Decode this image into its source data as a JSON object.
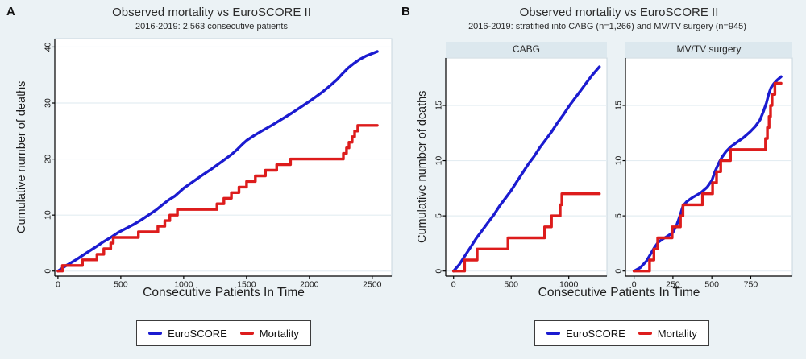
{
  "colors": {
    "euroscore": "#1b1bd0",
    "mortality": "#dd1c1c",
    "canvas_bg": "#ebf2f5",
    "plot_bg": "#ffffff",
    "plot_border": "#c9d7de",
    "header_bg": "#dce8ee",
    "grid": "#e4edf2",
    "axis": "#000000",
    "text": "#1a1a1a"
  },
  "legend": {
    "euroscore": "EuroSCORE",
    "mortality": "Mortality"
  },
  "panelA": {
    "label": "A",
    "title": "Observed mortality vs EuroSCORE II",
    "subtitle": "2016-2019: 2,563 consecutive patients",
    "ylabel": "Cumulative number of deaths",
    "xlabel": "Consecutive Patients In Time"
  },
  "panelB": {
    "label": "B",
    "title": "Observed mortality vs EuroSCORE II",
    "subtitle": "2016-2019: stratified into CABG (n=1,266) and MV/TV surgery (n=945)",
    "ylabel": "Cumulative number of deaths",
    "xlabel": "Consecutive Patients In Time"
  },
  "chart_data": [
    {
      "id": "chartA",
      "type": "line",
      "title": "Observed mortality vs EuroSCORE II",
      "subtitle": "2016-2019: 2,563 consecutive patients",
      "xlabel": "Consecutive Patients In Time",
      "ylabel": "Cumulative number of deaths",
      "grid": "horizontal",
      "legend_position": "bottom",
      "xticks": [
        0,
        500,
        1000,
        1500,
        2000,
        2500
      ],
      "yticks": [
        0,
        10,
        20,
        30,
        40
      ],
      "xlim": [
        -25,
        2655
      ],
      "ylim": [
        -0.9,
        41.5
      ],
      "series": [
        {
          "name": "EuroSCORE",
          "style": "line",
          "color": "euroscore",
          "points": [
            [
              0,
              0
            ],
            [
              60,
              0.9
            ],
            [
              150,
              2.1
            ],
            [
              230,
              3.3
            ],
            [
              300,
              4.3
            ],
            [
              360,
              5.2
            ],
            [
              420,
              6.0
            ],
            [
              480,
              6.9
            ],
            [
              540,
              7.6
            ],
            [
              600,
              8.3
            ],
            [
              660,
              9.1
            ],
            [
              720,
              10.0
            ],
            [
              780,
              10.9
            ],
            [
              830,
              11.8
            ],
            [
              880,
              12.7
            ],
            [
              930,
              13.4
            ],
            [
              1000,
              14.8
            ],
            [
              1070,
              15.9
            ],
            [
              1140,
              17.0
            ],
            [
              1220,
              18.2
            ],
            [
              1300,
              19.5
            ],
            [
              1380,
              20.8
            ],
            [
              1430,
              21.8
            ],
            [
              1470,
              22.7
            ],
            [
              1500,
              23.3
            ],
            [
              1560,
              24.2
            ],
            [
              1620,
              25.0
            ],
            [
              1700,
              26.0
            ],
            [
              1780,
              27.1
            ],
            [
              1860,
              28.2
            ],
            [
              1940,
              29.4
            ],
            [
              2020,
              30.6
            ],
            [
              2100,
              31.9
            ],
            [
              2160,
              33.0
            ],
            [
              2220,
              34.2
            ],
            [
              2270,
              35.4
            ],
            [
              2310,
              36.3
            ],
            [
              2350,
              37.0
            ],
            [
              2400,
              37.8
            ],
            [
              2450,
              38.4
            ],
            [
              2540,
              39.2
            ]
          ]
        },
        {
          "name": "Mortality",
          "style": "step",
          "color": "mortality",
          "points": [
            [
              0,
              0
            ],
            [
              35,
              1
            ],
            [
              195,
              2
            ],
            [
              310,
              3
            ],
            [
              365,
              4
            ],
            [
              420,
              5
            ],
            [
              440,
              6
            ],
            [
              640,
              7
            ],
            [
              795,
              8
            ],
            [
              850,
              9
            ],
            [
              890,
              10
            ],
            [
              950,
              11
            ],
            [
              1265,
              12
            ],
            [
              1320,
              13
            ],
            [
              1380,
              14
            ],
            [
              1440,
              15
            ],
            [
              1500,
              16
            ],
            [
              1570,
              17
            ],
            [
              1650,
              18
            ],
            [
              1740,
              19
            ],
            [
              1850,
              20
            ],
            [
              2270,
              21
            ],
            [
              2295,
              22
            ],
            [
              2315,
              23
            ],
            [
              2340,
              24
            ],
            [
              2360,
              25
            ],
            [
              2385,
              26
            ],
            [
              2540,
              26
            ]
          ]
        }
      ]
    },
    {
      "id": "chartB1",
      "type": "line",
      "panel": "CABG",
      "xlabel": "Consecutive Patients In Time",
      "ylabel": "Cumulative number of deaths",
      "grid": "horizontal",
      "xticks": [
        0,
        500,
        1000
      ],
      "yticks": [
        0,
        5,
        10,
        15
      ],
      "xlim": [
        -68,
        1331
      ],
      "ylim": [
        -0.46,
        19.3
      ],
      "series": [
        {
          "name": "EuroSCORE",
          "style": "line",
          "color": "euroscore",
          "points": [
            [
              0,
              0
            ],
            [
              50,
              0.6
            ],
            [
              100,
              1.4
            ],
            [
              150,
              2.2
            ],
            [
              200,
              3.0
            ],
            [
              250,
              3.7
            ],
            [
              300,
              4.4
            ],
            [
              350,
              5.1
            ],
            [
              400,
              5.9
            ],
            [
              450,
              6.6
            ],
            [
              500,
              7.3
            ],
            [
              550,
              8.1
            ],
            [
              600,
              8.9
            ],
            [
              650,
              9.7
            ],
            [
              700,
              10.4
            ],
            [
              750,
              11.2
            ],
            [
              800,
              11.9
            ],
            [
              850,
              12.6
            ],
            [
              900,
              13.4
            ],
            [
              950,
              14.1
            ],
            [
              1000,
              14.9
            ],
            [
              1050,
              15.6
            ],
            [
              1100,
              16.3
            ],
            [
              1150,
              17.0
            ],
            [
              1200,
              17.7
            ],
            [
              1266,
              18.5
            ]
          ]
        },
        {
          "name": "Mortality",
          "style": "step",
          "color": "mortality",
          "points": [
            [
              0,
              0
            ],
            [
              96,
              1
            ],
            [
              205,
              2
            ],
            [
              472,
              3
            ],
            [
              790,
              4
            ],
            [
              850,
              5
            ],
            [
              925,
              6
            ],
            [
              940,
              7
            ],
            [
              1266,
              7
            ]
          ]
        }
      ]
    },
    {
      "id": "chartB2",
      "type": "line",
      "panel": "MV/TV surgery",
      "xlabel": "Consecutive Patients In Time",
      "ylabel": "Cumulative number of deaths",
      "grid": "horizontal",
      "xticks": [
        0,
        250,
        500,
        750
      ],
      "yticks": [
        0,
        5,
        10,
        15
      ],
      "xlim": [
        -55,
        1017
      ],
      "ylim": [
        -0.46,
        19.3
      ],
      "series": [
        {
          "name": "EuroSCORE",
          "style": "line",
          "color": "euroscore",
          "points": [
            [
              0,
              0
            ],
            [
              40,
              0.3
            ],
            [
              80,
              0.9
            ],
            [
              105,
              1.5
            ],
            [
              130,
              2.1
            ],
            [
              155,
              2.6
            ],
            [
              185,
              2.9
            ],
            [
              220,
              3.2
            ],
            [
              250,
              3.5
            ],
            [
              275,
              4.2
            ],
            [
              295,
              5.0
            ],
            [
              315,
              5.9
            ],
            [
              340,
              6.3
            ],
            [
              380,
              6.7
            ],
            [
              430,
              7.1
            ],
            [
              470,
              7.6
            ],
            [
              500,
              8.2
            ],
            [
              520,
              9.0
            ],
            [
              545,
              9.8
            ],
            [
              565,
              10.3
            ],
            [
              590,
              10.8
            ],
            [
              625,
              11.3
            ],
            [
              665,
              11.7
            ],
            [
              705,
              12.1
            ],
            [
              745,
              12.6
            ],
            [
              780,
              13.1
            ],
            [
              810,
              13.7
            ],
            [
              830,
              14.4
            ],
            [
              850,
              15.2
            ],
            [
              865,
              16.0
            ],
            [
              880,
              16.6
            ],
            [
              900,
              17.0
            ],
            [
              920,
              17.3
            ],
            [
              945,
              17.6
            ]
          ]
        },
        {
          "name": "Mortality",
          "style": "step",
          "color": "mortality",
          "points": [
            [
              0,
              0
            ],
            [
              100,
              1
            ],
            [
              128,
              2
            ],
            [
              152,
              3
            ],
            [
              245,
              4
            ],
            [
              298,
              5
            ],
            [
              315,
              6
            ],
            [
              440,
              7
            ],
            [
              505,
              8
            ],
            [
              530,
              9
            ],
            [
              557,
              10
            ],
            [
              620,
              11
            ],
            [
              845,
              12
            ],
            [
              857,
              13
            ],
            [
              868,
              14
            ],
            [
              877,
              15
            ],
            [
              887,
              16
            ],
            [
              905,
              17
            ],
            [
              945,
              17
            ]
          ]
        }
      ]
    }
  ]
}
